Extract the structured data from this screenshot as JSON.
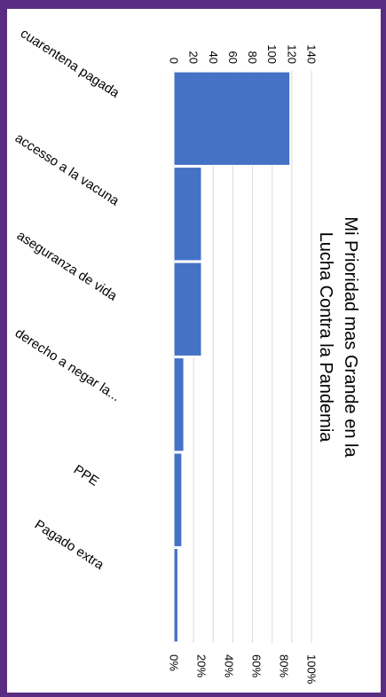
{
  "chart_data": {
    "type": "bar",
    "orientation": "rotated-90-clockwise",
    "title": "Mi Prioridad mas Grande en la Lucha Contra la Pandemia",
    "title_lines": [
      "Mi Prioridad mas Grande en la",
      "Lucha Contra la Pandemia"
    ],
    "categories": [
      "cuarentena pagada",
      "accesso a la vacuna",
      "aseguranza de vida",
      "derecho a negar la...",
      "PPE",
      "Pagado extra"
    ],
    "values": [
      118,
      28,
      28,
      10,
      8,
      4
    ],
    "count_axis": {
      "min": 0,
      "max": 140,
      "ticks": [
        0,
        20,
        40,
        60,
        80,
        100,
        120,
        140
      ]
    },
    "percent_axis": {
      "min": 0,
      "max": 100,
      "ticks": [
        "0%",
        "20%",
        "40%",
        "60%",
        "80%",
        "100%"
      ]
    },
    "grid": true,
    "legend": "none",
    "colors": {
      "bar": "#4472c4",
      "grid": "#d9d9d9",
      "text": "#000000",
      "frame": "#5b2d82"
    }
  }
}
